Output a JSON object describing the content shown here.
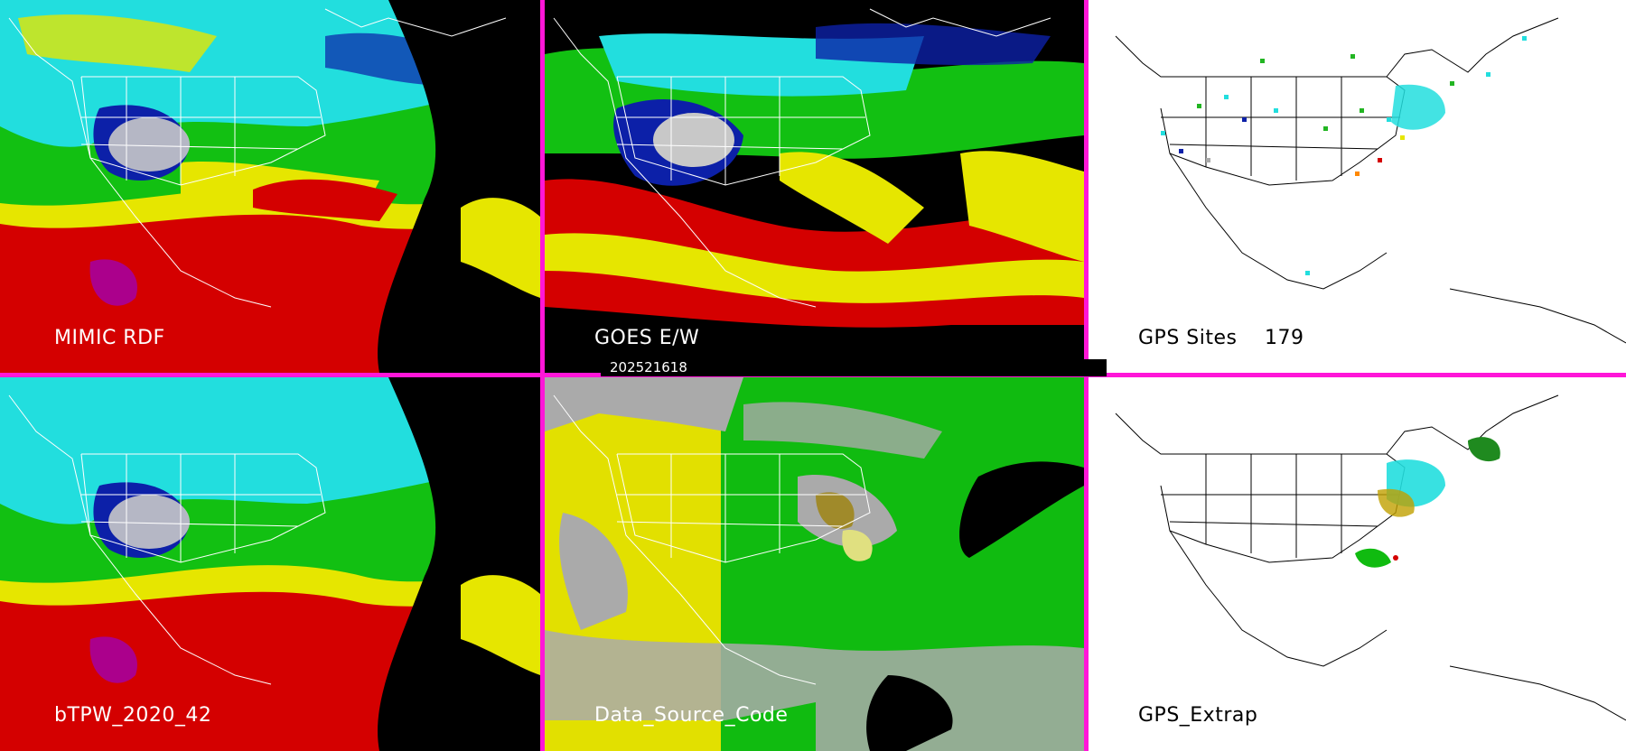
{
  "panels": {
    "top_left": {
      "label": "MIMIC RDF"
    },
    "top_middle": {
      "label": "GOES E/W"
    },
    "top_right": {
      "label": "GPS Sites",
      "count": "179"
    },
    "bottom_left": {
      "label": "bTPW_2020_42"
    },
    "bottom_middle": {
      "label": "Data_Source_Code"
    },
    "bottom_right": {
      "label": "GPS_Extrap"
    }
  },
  "timestamp": "202521618",
  "colors": {
    "divider": "#ff16d8",
    "tpw_red": "#d40000",
    "tpw_yellow": "#e6e600",
    "tpw_green": "#12c012",
    "tpw_cyan": "#22dede",
    "tpw_blue": "#0c20a8",
    "dsc_yellow": "#e2e000",
    "dsc_green": "#10bb10",
    "dsc_gray": "#aaaaaa"
  }
}
